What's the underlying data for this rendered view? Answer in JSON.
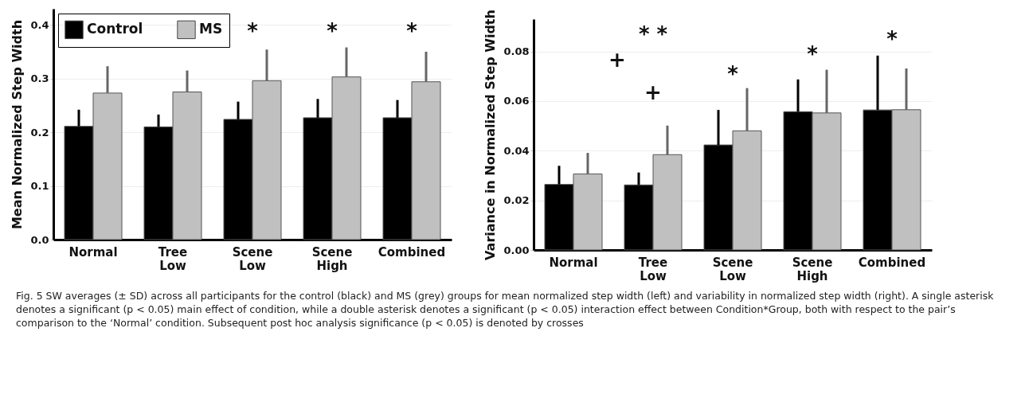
{
  "chart_data": [
    {
      "type": "bar",
      "ylabel": "Mean Normalized Step Width",
      "categories": [
        "Normal",
        "Tree Low",
        "Scene Low",
        "Scene High",
        "Combined"
      ],
      "series": [
        {
          "name": "Control",
          "color": "#000000",
          "values": [
            0.211,
            0.21,
            0.224,
            0.227,
            0.227
          ],
          "errors": [
            [
              0.211,
              0.242
            ],
            [
              0.21,
              0.233
            ],
            [
              0.224,
              0.257
            ],
            [
              0.227,
              0.262
            ],
            [
              0.227,
              0.26
            ]
          ]
        },
        {
          "name": "MS",
          "color": "#c0c0c0",
          "values": [
            0.273,
            0.275,
            0.296,
            0.303,
            0.294
          ],
          "errors": [
            [
              0.273,
              0.323
            ],
            [
              0.275,
              0.315
            ],
            [
              0.296,
              0.354
            ],
            [
              0.303,
              0.358
            ],
            [
              0.294,
              0.35
            ]
          ]
        }
      ],
      "ylim": [
        0,
        0.43
      ],
      "yticks": [
        {
          "value": 0,
          "label": "0.0"
        },
        0.1,
        0.2,
        0.3,
        0.4
      ],
      "grid": "y",
      "legend": "top left",
      "annotations": [
        "*",
        "*",
        "*"
      ]
    },
    {
      "type": "bar",
      "ylabel": "Variance in Normalized Step Width",
      "categories": [
        "Normal",
        "Tree Low",
        "Scene Low",
        "Scene High",
        "Combined"
      ],
      "series": [
        {
          "color": "#000000",
          "values": [
            0.0264,
            0.0262,
            0.0423,
            0.0557,
            0.0564
          ],
          "errors": [
            [
              0.0264,
              0.0339
            ],
            [
              0.0262,
              0.0312
            ],
            [
              0.0423,
              0.0564
            ],
            [
              0.0557,
              0.0687
            ],
            [
              0.0564,
              0.0783
            ]
          ]
        },
        {
          "color": "#c0c0c0",
          "values": [
            0.0306,
            0.0384,
            0.048,
            0.0552,
            0.0565
          ],
          "errors": [
            [
              0.0306,
              0.0391
            ],
            [
              0.0384,
              0.0501
            ],
            [
              0.048,
              0.0652
            ],
            [
              0.0552,
              0.0726
            ],
            [
              0.0565,
              0.0731
            ]
          ]
        }
      ],
      "ylim": [
        0,
        0.093
      ],
      "yticks": [
        {
          "value": 0,
          "label": "0.00"
        },
        0.02,
        0.04,
        0.06,
        0.08
      ],
      "grid": "y",
      "annotations": [
        "* *",
        "+",
        "+",
        "*",
        "*",
        "*",
        "Fig. 5 SW averages (± SD) across all participants for the control (black) and MS (grey) groups for mean normalized step width (left) and variability in normalized step width (right). A single asterisk denotes a significant (p < 0.05) main effect of condition, while a double asterisk denotes a significant (p < 0.05) interaction effect between Condition*Group, both with respect to the pair’s comparison to the ‘Normal’ condition. Subsequent post hoc analysis significance (p < 0.05) is denoted by crosses"
      ]
    }
  ]
}
